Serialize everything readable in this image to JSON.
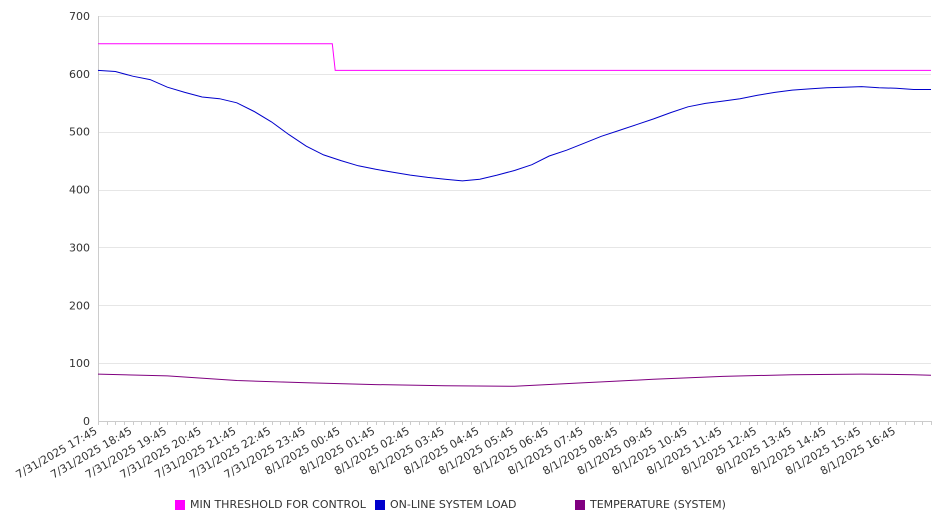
{
  "chart_data": {
    "type": "line",
    "title": "",
    "xlabel": "",
    "ylabel": "",
    "ylim": [
      0,
      700
    ],
    "yticks": [
      0,
      100,
      200,
      300,
      400,
      500,
      600,
      700
    ],
    "grid": true,
    "legend_position": "bottom",
    "x_tick_labels": [
      "7/31/2025 17:45",
      "7/31/2025 18:45",
      "7/31/2025 19:45",
      "7/31/2025 20:45",
      "7/31/2025 21:45",
      "7/31/2025 22:45",
      "7/31/2025 23:45",
      "8/1/2025 00:45",
      "8/1/2025 01:45",
      "8/1/2025 02:45",
      "8/1/2025 03:45",
      "8/1/2025 04:45",
      "8/1/2025 05:45",
      "8/1/2025 06:45",
      "8/1/2025 07:45",
      "8/1/2025 08:45",
      "8/1/2025 09:45",
      "8/1/2025 10:45",
      "8/1/2025 11:45",
      "8/1/2025 12:45",
      "8/1/2025 13:45",
      "8/1/2025 14:45",
      "8/1/2025 15:45",
      "8/1/2025 16:45"
    ],
    "x_start": "7/31/2025 17:45",
    "x_end": "8/1/2025 17:45",
    "series": [
      {
        "name": "MIN THRESHOLD FOR CONTROL",
        "color": "#ff00ff",
        "points": [
          [
            "7/31/2025 17:45",
            652
          ],
          [
            "8/1/2025 00:30",
            652
          ],
          [
            "8/1/2025 00:35",
            606
          ],
          [
            "8/1/2025 17:45",
            606
          ]
        ]
      },
      {
        "name": "ON-LINE SYSTEM LOAD",
        "color": "#0000cc",
        "points": [
          [
            "7/31/2025 17:45",
            606
          ],
          [
            "7/31/2025 18:15",
            604
          ],
          [
            "7/31/2025 18:45",
            596
          ],
          [
            "7/31/2025 19:15",
            590
          ],
          [
            "7/31/2025 19:45",
            577
          ],
          [
            "7/31/2025 20:15",
            568
          ],
          [
            "7/31/2025 20:45",
            560
          ],
          [
            "7/31/2025 21:15",
            557
          ],
          [
            "7/31/2025 21:45",
            550
          ],
          [
            "7/31/2025 22:15",
            535
          ],
          [
            "7/31/2025 22:45",
            517
          ],
          [
            "7/31/2025 23:15",
            495
          ],
          [
            "7/31/2025 23:45",
            475
          ],
          [
            "8/1/2025 00:15",
            460
          ],
          [
            "8/1/2025 00:45",
            450
          ],
          [
            "8/1/2025 01:15",
            441
          ],
          [
            "8/1/2025 01:45",
            435
          ],
          [
            "8/1/2025 02:15",
            430
          ],
          [
            "8/1/2025 02:45",
            425
          ],
          [
            "8/1/2025 03:15",
            421
          ],
          [
            "8/1/2025 03:45",
            418
          ],
          [
            "8/1/2025 04:15",
            415
          ],
          [
            "8/1/2025 04:45",
            418
          ],
          [
            "8/1/2025 05:15",
            425
          ],
          [
            "8/1/2025 05:45",
            433
          ],
          [
            "8/1/2025 06:15",
            443
          ],
          [
            "8/1/2025 06:45",
            458
          ],
          [
            "8/1/2025 07:15",
            468
          ],
          [
            "8/1/2025 07:45",
            480
          ],
          [
            "8/1/2025 08:15",
            492
          ],
          [
            "8/1/2025 08:45",
            502
          ],
          [
            "8/1/2025 09:15",
            512
          ],
          [
            "8/1/2025 09:45",
            522
          ],
          [
            "8/1/2025 10:15",
            533
          ],
          [
            "8/1/2025 10:45",
            543
          ],
          [
            "8/1/2025 11:15",
            549
          ],
          [
            "8/1/2025 11:45",
            553
          ],
          [
            "8/1/2025 12:15",
            557
          ],
          [
            "8/1/2025 12:45",
            563
          ],
          [
            "8/1/2025 13:15",
            568
          ],
          [
            "8/1/2025 13:45",
            572
          ],
          [
            "8/1/2025 14:15",
            574
          ],
          [
            "8/1/2025 14:45",
            576
          ],
          [
            "8/1/2025 15:15",
            577
          ],
          [
            "8/1/2025 15:45",
            578
          ],
          [
            "8/1/2025 16:15",
            576
          ],
          [
            "8/1/2025 16:45",
            575
          ],
          [
            "8/1/2025 17:15",
            573
          ],
          [
            "8/1/2025 17:45",
            573
          ]
        ]
      },
      {
        "name": "TEMPERATURE (SYSTEM)",
        "color": "#800080",
        "points": [
          [
            "7/31/2025 17:45",
            81
          ],
          [
            "7/31/2025 19:45",
            78
          ],
          [
            "7/31/2025 21:45",
            70
          ],
          [
            "7/31/2025 23:45",
            66
          ],
          [
            "8/1/2025 01:45",
            63
          ],
          [
            "8/1/2025 03:45",
            61
          ],
          [
            "8/1/2025 05:45",
            60
          ],
          [
            "8/1/2025 07:45",
            66
          ],
          [
            "8/1/2025 09:45",
            72
          ],
          [
            "8/1/2025 11:45",
            77
          ],
          [
            "8/1/2025 13:45",
            80
          ],
          [
            "8/1/2025 15:45",
            81
          ],
          [
            "8/1/2025 17:15",
            80
          ],
          [
            "8/1/2025 17:45",
            79
          ]
        ]
      }
    ]
  }
}
